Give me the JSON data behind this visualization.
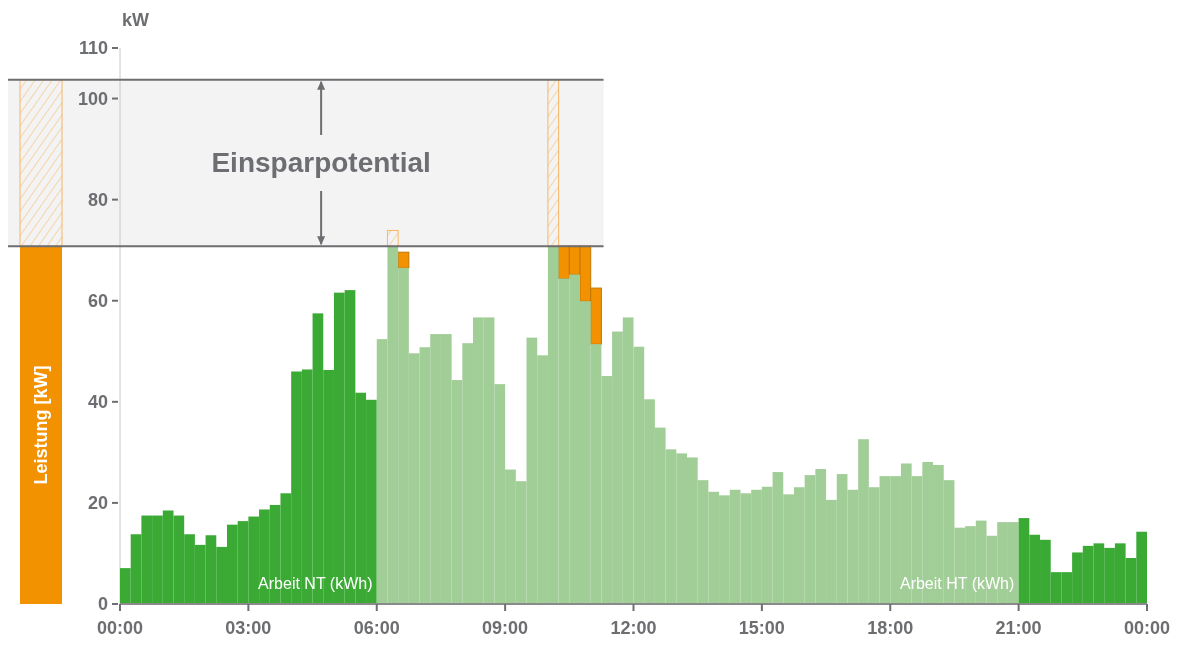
{
  "chart_data": {
    "type": "bar",
    "ylabel": "Leistung [kW]",
    "xlim": [
      0,
      24
    ],
    "xticks": [
      {
        "value": 0,
        "label": "00:00"
      },
      {
        "value": 3,
        "label": "03:00"
      },
      {
        "value": 6,
        "label": "06:00"
      },
      {
        "value": 9,
        "label": "09:00"
      },
      {
        "value": 12,
        "label": "12:00"
      },
      {
        "value": 15,
        "label": "15:00"
      },
      {
        "value": 18,
        "label": "18:00"
      },
      {
        "value": 21,
        "label": "21:00"
      },
      {
        "value": 24,
        "label": "00:00"
      }
    ],
    "ylim": [
      0,
      110
    ],
    "yticks": [
      0,
      20,
      40,
      60,
      80,
      100,
      110
    ],
    "series": [
      {
        "x": [
          0.125,
          0.375,
          0.625,
          0.875,
          1.125,
          1.375,
          1.625,
          1.875,
          2.125,
          2.375,
          2.625,
          2.875,
          3.125,
          3.375,
          3.625,
          3.875,
          4.125,
          4.375,
          4.625,
          4.875,
          5.125,
          5.375,
          5.625,
          5.875,
          6.125,
          6.375,
          6.625,
          6.875,
          7.125,
          7.375,
          7.625,
          7.875,
          8.125,
          8.375,
          8.625,
          8.875,
          9.125,
          9.375,
          9.625,
          9.875,
          10.125,
          10.375,
          10.625,
          10.875,
          11.125,
          11.375,
          11.625,
          11.875,
          12.125,
          12.375,
          12.625,
          12.875,
          13.125,
          13.375,
          13.625,
          13.875,
          14.125,
          14.375,
          14.625,
          14.875,
          15.125,
          15.375,
          15.625,
          15.875,
          16.125,
          16.375,
          16.625,
          16.875,
          17.125,
          17.375,
          17.625,
          17.875,
          18.125,
          18.375,
          18.625,
          18.875,
          19.125,
          19.375,
          19.625,
          19.875,
          20.125,
          20.375,
          20.625,
          20.875,
          21.125,
          21.375,
          21.625,
          21.875,
          22.125,
          22.375,
          22.625,
          22.875,
          23.125,
          23.375,
          23.625,
          23.875
        ],
        "values": [
          7.1,
          13.8,
          17.5,
          17.5,
          18.5,
          17.5,
          13.8,
          11.7,
          13.6,
          11.3,
          15.7,
          16.4,
          17.3,
          18.7,
          19.6,
          21.9,
          46.0,
          46.4,
          57.5,
          46.3,
          61.6,
          62.1,
          41.8,
          40.4,
          52.4,
          70.8,
          66.5,
          49.6,
          50.8,
          53.4,
          53.4,
          44.3,
          51.6,
          56.7,
          56.7,
          43.5,
          26.6,
          24.3,
          52.7,
          49.2,
          70.8,
          64.4,
          65.2,
          59.9,
          51.4,
          45.1,
          53.9,
          56.7,
          50.9,
          40.5,
          34.9,
          30.6,
          29.8,
          29.0,
          24.5,
          22.2,
          21.5,
          22.6,
          21.9,
          22.6,
          23.2,
          26.1,
          21.7,
          23.1,
          25.5,
          26.7,
          20.6,
          25.7,
          22.6,
          32.6,
          23.1,
          25.3,
          25.3,
          27.8,
          25.3,
          28.1,
          27.5,
          24.5,
          15.1,
          15.4,
          16.5,
          13.5,
          16.2,
          16.2,
          17.0,
          13.7,
          12.7,
          6.3,
          6.3,
          10.2,
          11.5,
          12.0,
          11.1,
          12.0,
          9.1,
          14.3
        ],
        "colors": [
          "#3aaa35",
          "#3aaa35",
          "#3aaa35",
          "#3aaa35",
          "#3aaa35",
          "#3aaa35",
          "#3aaa35",
          "#3aaa35",
          "#3aaa35",
          "#3aaa35",
          "#3aaa35",
          "#3aaa35",
          "#3aaa35",
          "#3aaa35",
          "#3aaa35",
          "#3aaa35",
          "#3aaa35",
          "#3aaa35",
          "#3aaa35",
          "#3aaa35",
          "#3aaa35",
          "#3aaa35",
          "#3aaa35",
          "#3aaa35",
          "#a1cd97",
          "#a1cd97",
          "#a1cd97",
          "#a1cd97",
          "#a1cd97",
          "#a1cd97",
          "#a1cd97",
          "#a1cd97",
          "#a1cd97",
          "#a1cd97",
          "#a1cd97",
          "#a1cd97",
          "#a1cd97",
          "#a1cd97",
          "#a1cd97",
          "#a1cd97",
          "#a1cd97",
          "#a1cd97",
          "#a1cd97",
          "#a1cd97",
          "#a1cd97",
          "#a1cd97",
          "#a1cd97",
          "#a1cd97",
          "#a1cd97",
          "#a1cd97",
          "#a1cd97",
          "#a1cd97",
          "#a1cd97",
          "#a1cd97",
          "#a1cd97",
          "#a1cd97",
          "#a1cd97",
          "#a1cd97",
          "#a1cd97",
          "#a1cd97",
          "#a1cd97",
          "#a1cd97",
          "#a1cd97",
          "#a1cd97",
          "#a1cd97",
          "#a1cd97",
          "#a1cd97",
          "#a1cd97",
          "#a1cd97",
          "#a1cd97",
          "#a1cd97",
          "#a1cd97",
          "#a1cd97",
          "#a1cd97",
          "#a1cd97",
          "#a1cd97",
          "#a1cd97",
          "#a1cd97",
          "#a1cd97",
          "#a1cd97",
          "#a1cd97",
          "#a1cd97",
          "#a1cd97",
          "#a1cd97",
          "#3aaa35",
          "#3aaa35",
          "#3aaa35",
          "#3aaa35",
          "#3aaa35",
          "#3aaa35",
          "#3aaa35",
          "#3aaa35",
          "#3aaa35",
          "#3aaa35",
          "#3aaa35",
          "#3aaa35"
        ]
      },
      {
        "color": "#f39200",
        "x": [
          6.625,
          10.375,
          10.625,
          10.875,
          11.125
        ],
        "base": [
          66.5,
          64.4,
          65.2,
          59.9,
          51.4
        ],
        "values": [
          3.1,
          6.4,
          5.6,
          10.9,
          11.1
        ]
      },
      {
        "color": "#f7b664",
        "x": [
          6.375,
          10.125
        ],
        "base": [
          70.8,
          70.8
        ],
        "values": [
          3.1,
          32.9
        ]
      }
    ],
    "ref_lines": [
      {
        "axis": "y",
        "value": 103.7,
        "color": "#6d6e71"
      },
      {
        "axis": "y",
        "value": 70.8,
        "color": "#6d6e71"
      }
    ],
    "bands": [
      {
        "axis": "y",
        "from": 70.8,
        "to": 103.7,
        "label": "Einsparpotential",
        "color": "#f3f3f3"
      }
    ],
    "annotations": [
      "kW",
      {
        "text": "Arbeit NT (kWh)",
        "x": 5.9,
        "y": 3
      },
      {
        "text": "Arbeit HT (kWh)",
        "x": 20.9,
        "y": 3
      }
    ]
  }
}
